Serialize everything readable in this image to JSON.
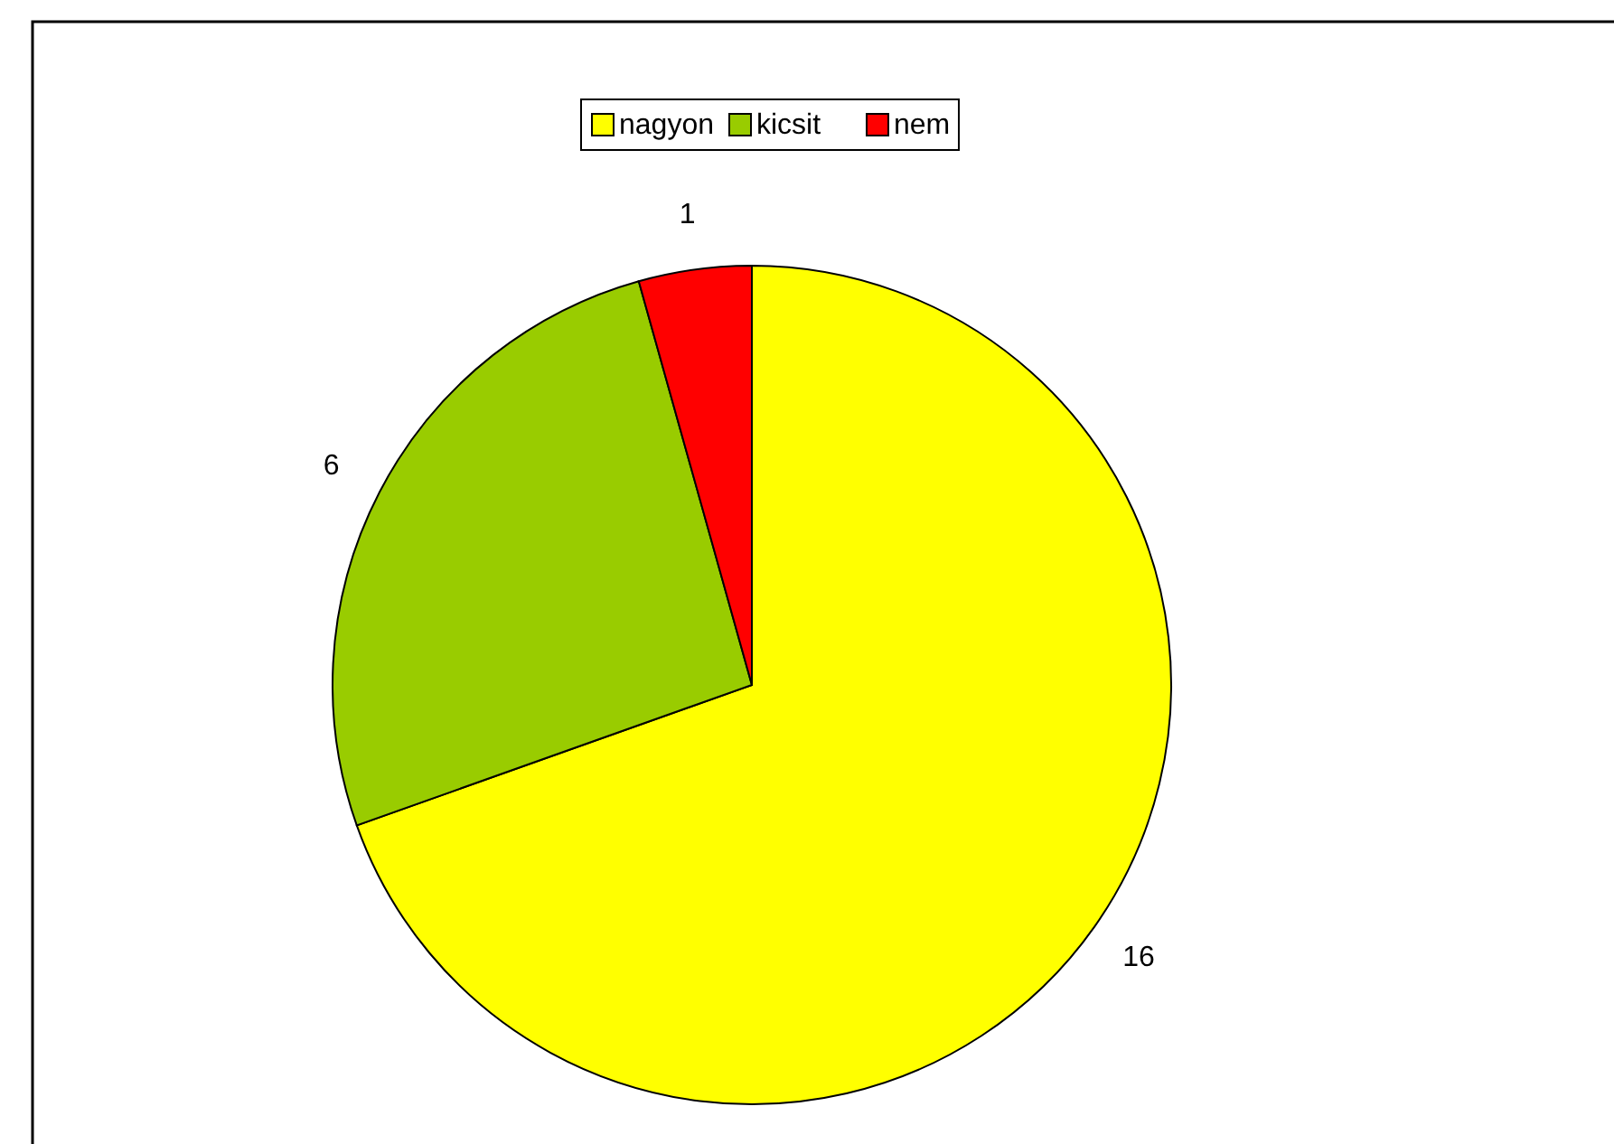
{
  "chart_data": {
    "type": "pie",
    "categories": [
      "nagyon",
      "kicsit",
      "nem"
    ],
    "values": [
      16,
      6,
      1
    ],
    "colors": [
      "#ffff00",
      "#99cc00",
      "#ff0000"
    ],
    "data_labels": true,
    "legend": "top"
  }
}
